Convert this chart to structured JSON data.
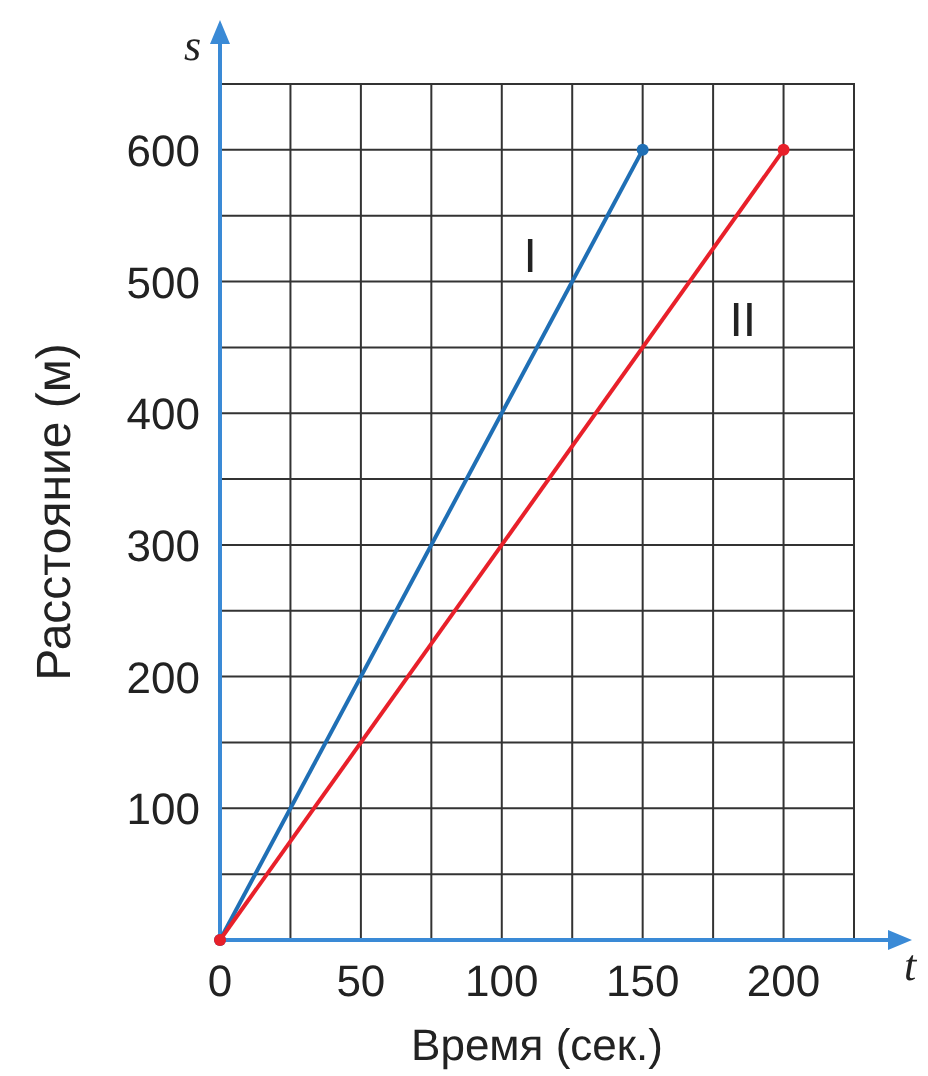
{
  "chart_data": {
    "type": "line",
    "xlabel": "Время (сек.)",
    "ylabel": "Расстояние (м)",
    "annotations": [
      "s",
      "t"
    ],
    "series": [
      {
        "name": "I",
        "color": "#1f6fb5",
        "x": [
          0,
          150
        ],
        "values": [
          0,
          600
        ]
      },
      {
        "name": "II",
        "color": "#e8202a",
        "x": [
          0,
          200
        ],
        "values": [
          0,
          600
        ]
      }
    ],
    "xlim": [
      0,
      225
    ],
    "ylim": [
      0,
      650
    ],
    "xticks": [
      0,
      {
        "value": 25,
        "label": null
      },
      50,
      {
        "value": 75,
        "label": null
      },
      100,
      {
        "value": 125,
        "label": null
      },
      150,
      {
        "value": 175,
        "label": null
      },
      200,
      {
        "value": 225,
        "label": null
      }
    ],
    "yticks": [
      {
        "value": 0,
        "label": null
      },
      {
        "value": 50,
        "label": null
      },
      100,
      {
        "value": 150,
        "label": null
      },
      200,
      {
        "value": 250,
        "label": null
      },
      300,
      {
        "value": 350,
        "label": null
      },
      400,
      {
        "value": 450,
        "label": null
      },
      500,
      {
        "value": 550,
        "label": null
      },
      600,
      {
        "value": 650,
        "label": null
      }
    ],
    "grid": true,
    "marker": "circle",
    "line_style": "solid"
  }
}
